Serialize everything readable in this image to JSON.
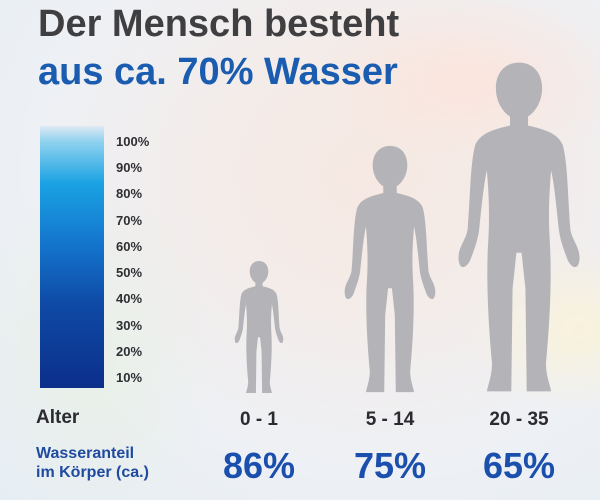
{
  "title": {
    "line1": "Der Mensch besteht",
    "line2": "aus ca. 70% Wasser"
  },
  "scale": {
    "labels": [
      "100%",
      "90%",
      "80%",
      "70%",
      "60%",
      "50%",
      "40%",
      "30%",
      "20%",
      "10%"
    ]
  },
  "labels": {
    "alter": "Alter",
    "wasseranteil_line1": "Wasseranteil",
    "wasseranteil_line2": "im Körper (ca.)"
  },
  "colors": {
    "water": "#17399e",
    "body": "#b4b4b8",
    "title_dark": "#3f3f42",
    "title_blue": "#1a5cb0",
    "percent": "#1a4fae"
  },
  "chart_data": {
    "type": "bar",
    "categories": [
      "0 - 1",
      "5 - 14",
      "20 - 35"
    ],
    "values": [
      86,
      75,
      65
    ],
    "value_labels": [
      "86%",
      "75%",
      "65%"
    ],
    "title": "",
    "xlabel": "Alter",
    "ylabel": "Wasseranteil im Körper (ca.)",
    "ylim": [
      0,
      100
    ],
    "grid": false
  }
}
